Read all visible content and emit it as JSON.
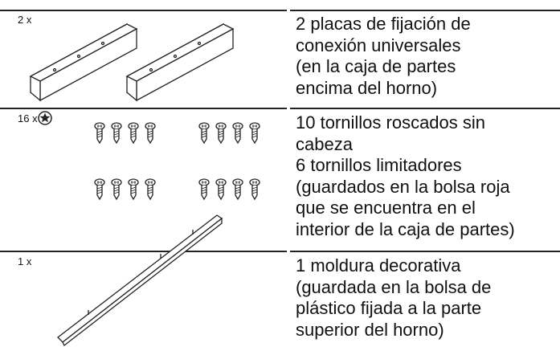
{
  "rows": [
    {
      "quantity": "2 x",
      "description": [
        "2 placas de fijación de",
        "conexión universales",
        "(en la caja de partes",
        "encima del horno)"
      ]
    },
    {
      "quantity": "16 x",
      "description": [
        "10 tornillos roscados sin",
        "cabeza",
        "6 tornillos limitadores",
        "(guardados en la bolsa roja",
        "que se encuentra en el",
        "interior de la caja de partes)"
      ]
    },
    {
      "quantity": "1 x",
      "description": [
        "1 moldura decorativa",
        "(guardada en la bolsa de",
        "plástico fijada a la parte",
        "superior del horno)"
      ]
    }
  ]
}
